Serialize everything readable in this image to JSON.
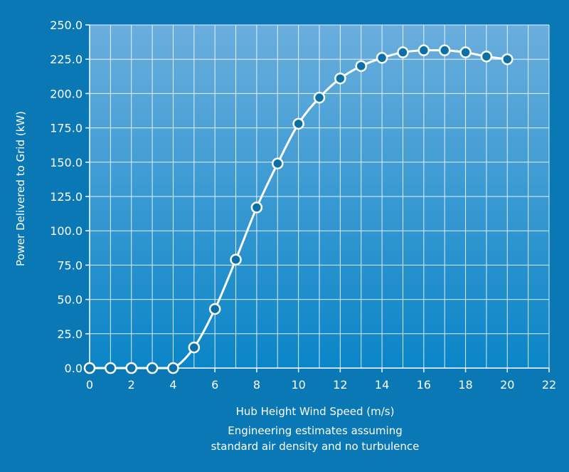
{
  "chart_data": {
    "type": "line",
    "xlabel": "Hub Height Wind Speed (m/s)",
    "ylabel": "Power Delivered to Grid (kW)",
    "notes": [
      "Engineering estimates assuming",
      "standard air density and no turbulence"
    ],
    "xlim": [
      0,
      22
    ],
    "ylim": [
      0,
      250
    ],
    "x_ticks": [
      0,
      2,
      4,
      6,
      8,
      10,
      12,
      14,
      16,
      18,
      20,
      22
    ],
    "y_ticks": [
      "0.0",
      "25.0",
      "50.0",
      "75.0",
      "100.0",
      "125.0",
      "150.0",
      "175.0",
      "200.0",
      "225.0",
      "250.0"
    ],
    "grid": true,
    "series": [
      {
        "x": [
          0,
          1,
          2,
          3,
          4,
          5,
          6,
          7,
          8,
          9,
          10,
          11,
          12,
          13,
          14,
          15,
          16,
          17,
          18,
          19,
          20
        ],
        "y": [
          0,
          0,
          0,
          0,
          0,
          15,
          43,
          79,
          117,
          149,
          178,
          197,
          211,
          220,
          226,
          230,
          231.5,
          231.5,
          230,
          227,
          225
        ]
      }
    ],
    "colors": {
      "background": "#0a78b5",
      "plot_top": "#6aaedd",
      "plot_bottom": "#0a85c7",
      "line": "#ffffff",
      "marker_fill": "#0b6fa8"
    }
  }
}
